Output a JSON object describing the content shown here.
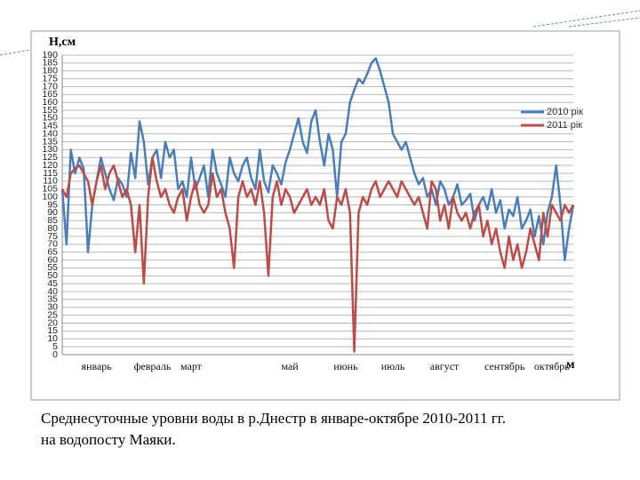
{
  "chart_data": {
    "type": "line",
    "ylabel": "Н,см",
    "xlabel": "м",
    "categories": [
      null,
      null,
      null,
      null,
      null,
      null,
      null,
      null,
      "январь",
      null,
      null,
      null,
      null,
      null,
      null,
      null,
      null,
      null,
      null,
      null,
      null,
      "февраль",
      null,
      null,
      null,
      null,
      null,
      null,
      null,
      null,
      "март",
      null,
      null,
      null,
      null,
      null,
      null,
      null,
      null,
      null,
      null,
      null,
      null,
      null,
      null,
      null,
      null,
      null,
      null,
      null,
      null,
      null,
      null,
      "май",
      null,
      null,
      null,
      null,
      null,
      null,
      null,
      null,
      null,
      null,
      null,
      null,
      "июнь",
      null,
      null,
      null,
      null,
      null,
      null,
      null,
      null,
      null,
      null,
      "июль",
      null,
      null,
      null,
      null,
      null,
      null,
      null,
      null,
      null,
      null,
      null,
      "август",
      null,
      null,
      null,
      null,
      null,
      null,
      null,
      null,
      null,
      null,
      null,
      null,
      null,
      "сентябрь",
      null,
      null,
      null,
      null,
      null,
      null,
      null,
      null,
      null,
      null,
      "октябрь",
      null,
      null,
      null,
      null,
      null
    ],
    "series": [
      {
        "name": "2010 рік",
        "color": "#4a7ebb",
        "values": [
          105,
          70,
          130,
          115,
          125,
          118,
          65,
          95,
          110,
          125,
          115,
          105,
          98,
          112,
          108,
          100,
          128,
          112,
          148,
          135,
          108,
          125,
          130,
          112,
          135,
          125,
          130,
          105,
          110,
          100,
          125,
          105,
          112,
          120,
          100,
          130,
          115,
          108,
          100,
          125,
          115,
          110,
          120,
          125,
          112,
          105,
          130,
          110,
          103,
          120,
          115,
          108,
          122,
          130,
          140,
          150,
          135,
          128,
          148,
          155,
          135,
          120,
          140,
          130,
          100,
          135,
          140,
          160,
          168,
          175,
          172,
          178,
          185,
          188,
          180,
          170,
          160,
          140,
          135,
          130,
          135,
          125,
          115,
          108,
          112,
          100,
          105,
          95,
          110,
          105,
          95,
          100,
          108,
          95,
          98,
          102,
          85,
          95,
          100,
          92,
          105,
          90,
          98,
          80,
          92,
          88,
          100,
          80,
          85,
          92,
          75,
          88,
          70,
          90,
          100,
          120,
          95,
          60,
          80,
          95
        ]
      },
      {
        "name": "2011 рік",
        "color": "#be4b48",
        "values": [
          105,
          100,
          115,
          118,
          120,
          115,
          110,
          95,
          110,
          120,
          105,
          115,
          120,
          110,
          100,
          105,
          95,
          65,
          95,
          45,
          100,
          125,
          110,
          100,
          105,
          95,
          90,
          100,
          105,
          85,
          100,
          110,
          95,
          90,
          95,
          115,
          100,
          105,
          90,
          80,
          55,
          100,
          110,
          100,
          105,
          95,
          110,
          90,
          50,
          100,
          110,
          95,
          105,
          100,
          90,
          95,
          100,
          105,
          95,
          100,
          95,
          105,
          85,
          80,
          100,
          95,
          105,
          90,
          2,
          90,
          100,
          95,
          105,
          110,
          100,
          105,
          110,
          105,
          100,
          110,
          105,
          100,
          95,
          100,
          90,
          80,
          110,
          105,
          85,
          95,
          80,
          100,
          90,
          85,
          90,
          80,
          90,
          95,
          75,
          85,
          70,
          80,
          65,
          55,
          75,
          60,
          70,
          55,
          65,
          80,
          70,
          60,
          90,
          75,
          95,
          90,
          85,
          95,
          90,
          95
        ]
      }
    ],
    "ylim": [
      0,
      190
    ],
    "yticks": [
      0,
      5,
      10,
      15,
      20,
      25,
      30,
      35,
      40,
      45,
      50,
      55,
      60,
      65,
      70,
      75,
      80,
      85,
      90,
      95,
      100,
      105,
      110,
      115,
      120,
      125,
      130,
      135,
      140,
      145,
      150,
      155,
      160,
      165,
      170,
      175,
      180,
      185,
      190
    ],
    "grid": true,
    "legend": "right",
    "caption": [
      "Среднесуточные уровни воды в р.Днестр в январе-октябре 2010-2011 гг.",
      "на водопосту Маяки."
    ]
  }
}
